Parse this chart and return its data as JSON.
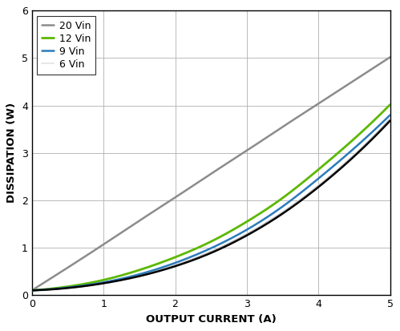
{
  "xlabel": "OUTPUT CURRENT (A)",
  "ylabel": "DISSIPATION (W)",
  "xlim": [
    0,
    5
  ],
  "ylim": [
    0,
    6
  ],
  "xticks": [
    0,
    1,
    2,
    3,
    4,
    5
  ],
  "yticks": [
    0,
    1,
    2,
    3,
    4,
    5,
    6
  ],
  "background_color": "#ffffff",
  "figsize": [
    4.99,
    4.13
  ],
  "dpi": 100,
  "curves": [
    {
      "label": "20 Vin",
      "color": "#8c8c8c",
      "lw": 1.8,
      "zorder": 2,
      "I": [
        0,
        0.5,
        1.0,
        1.5,
        2.0,
        2.5,
        3.0,
        3.5,
        4.0,
        4.5,
        5.0
      ],
      "P": [
        0.1,
        0.58,
        1.07,
        1.57,
        2.06,
        2.56,
        3.05,
        3.55,
        4.04,
        4.53,
        5.02
      ]
    },
    {
      "label": "12 Vin",
      "color": "#5cb800",
      "lw": 2.0,
      "zorder": 4,
      "I": [
        0,
        0.5,
        1.0,
        1.5,
        2.0,
        2.5,
        3.0,
        3.5,
        4.0,
        4.5,
        5.0
      ],
      "P": [
        0.1,
        0.18,
        0.32,
        0.53,
        0.8,
        1.13,
        1.55,
        2.05,
        2.65,
        3.3,
        4.02
      ]
    },
    {
      "label": "9 Vin",
      "color": "#2b7bba",
      "lw": 1.8,
      "zorder": 5,
      "I": [
        0,
        0.5,
        1.0,
        1.5,
        2.0,
        2.5,
        3.0,
        3.5,
        4.0,
        4.5,
        5.0
      ],
      "P": [
        0.1,
        0.16,
        0.27,
        0.44,
        0.68,
        0.99,
        1.38,
        1.87,
        2.46,
        3.1,
        3.8
      ]
    },
    {
      "label": "6 Vin",
      "color": "#c8c8c8",
      "lw": 1.5,
      "zorder": 3,
      "I": [
        0,
        0.5,
        1.0,
        1.5,
        2.0,
        2.5,
        3.0,
        3.5,
        4.0,
        4.5,
        5.0
      ],
      "P": [
        0.1,
        0.15,
        0.25,
        0.41,
        0.63,
        0.92,
        1.29,
        1.75,
        2.31,
        2.96,
        3.72
      ]
    }
  ],
  "black_curve": {
    "I": [
      0,
      0.5,
      1.0,
      1.5,
      2.0,
      2.5,
      3.0,
      3.5,
      4.0,
      4.5,
      5.0
    ],
    "P": [
      0.1,
      0.15,
      0.25,
      0.4,
      0.61,
      0.89,
      1.26,
      1.72,
      2.28,
      2.93,
      3.68
    ],
    "lw": 1.8,
    "zorder": 6
  },
  "legend": {
    "loc": "upper left",
    "fontsize": 9,
    "frameon": true,
    "edgecolor": "#333333",
    "handlelength": 1.2,
    "handleheight": 0.9,
    "borderpad": 0.5,
    "labelspacing": 0.25,
    "handletextpad": 0.5
  }
}
